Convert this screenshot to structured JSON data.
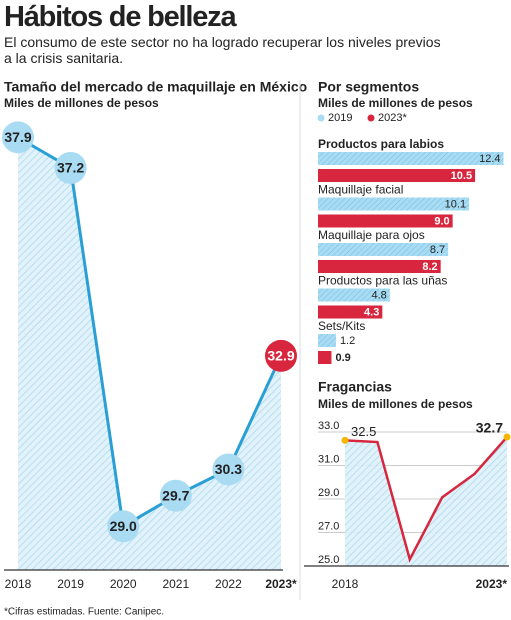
{
  "header": {
    "title": "Hábitos de belleza",
    "subtitle": "El consumo de este sector no ha logrado recuperar los niveles previos a la crisis sanitaria."
  },
  "chart_data": [
    {
      "type": "line",
      "title": "Tamaño del mercado de maquillaje en México",
      "subtitle": "Miles de millones de pesos",
      "categories": [
        "2018",
        "2019",
        "2020",
        "2021",
        "2022",
        "2023*"
      ],
      "values": [
        37.9,
        37.2,
        29.0,
        29.7,
        30.3,
        32.9
      ],
      "value_labels": [
        "37.9",
        "37.2",
        "29.0",
        "29.7",
        "30.3",
        "32.9"
      ],
      "color": "#2a9fd6",
      "marker_color": "#a9dcf3",
      "highlight_color": "#d7263d",
      "ylim": [
        28,
        38
      ]
    },
    {
      "type": "bar",
      "orientation": "horizontal",
      "title": "Por segmentos",
      "subtitle": "Miles de millones de pesos",
      "categories": [
        "Productos para labios",
        "Maquillaje facial",
        "Maquillaje para ojos",
        "Productos para las uñas",
        "Sets/Kits"
      ],
      "series": [
        {
          "name": "2019",
          "color": "#a9dcf3",
          "values": [
            12.4,
            10.1,
            8.7,
            4.8,
            1.2
          ],
          "value_labels": [
            "12.4",
            "10.1",
            "8.7",
            "4.8",
            "1.2"
          ]
        },
        {
          "name": "2023*",
          "color": "#d7263d",
          "values": [
            10.5,
            9.0,
            8.2,
            4.3,
            0.9
          ],
          "value_labels": [
            "10.5",
            "9.0",
            "8.2",
            "4.3",
            "0.9"
          ]
        }
      ],
      "xlim": [
        0,
        12.5
      ]
    },
    {
      "type": "line",
      "title": "Fragancias",
      "subtitle": "Miles de millones de pesos",
      "categories": [
        "2018",
        null,
        null,
        null,
        null,
        "2023*"
      ],
      "values": [
        32.5,
        32.4,
        25.4,
        29.1,
        30.5,
        32.7
      ],
      "value_labels": [
        "32.5",
        null,
        null,
        null,
        null,
        "32.7"
      ],
      "color": "#d7263d",
      "marker_color": "#f5b700",
      "ylim": [
        25,
        33
      ],
      "yticks": [
        {
          "value": 25,
          "label": "25.0"
        },
        {
          "value": 27,
          "label": "27.0"
        },
        {
          "value": 29,
          "label": "29.0"
        },
        {
          "value": 31,
          "label": "31.0"
        },
        {
          "value": 33,
          "label": "33.0"
        }
      ],
      "grid": true
    }
  ],
  "footer": {
    "note": "*Cifras estimadas. Fuente: Canipec."
  }
}
